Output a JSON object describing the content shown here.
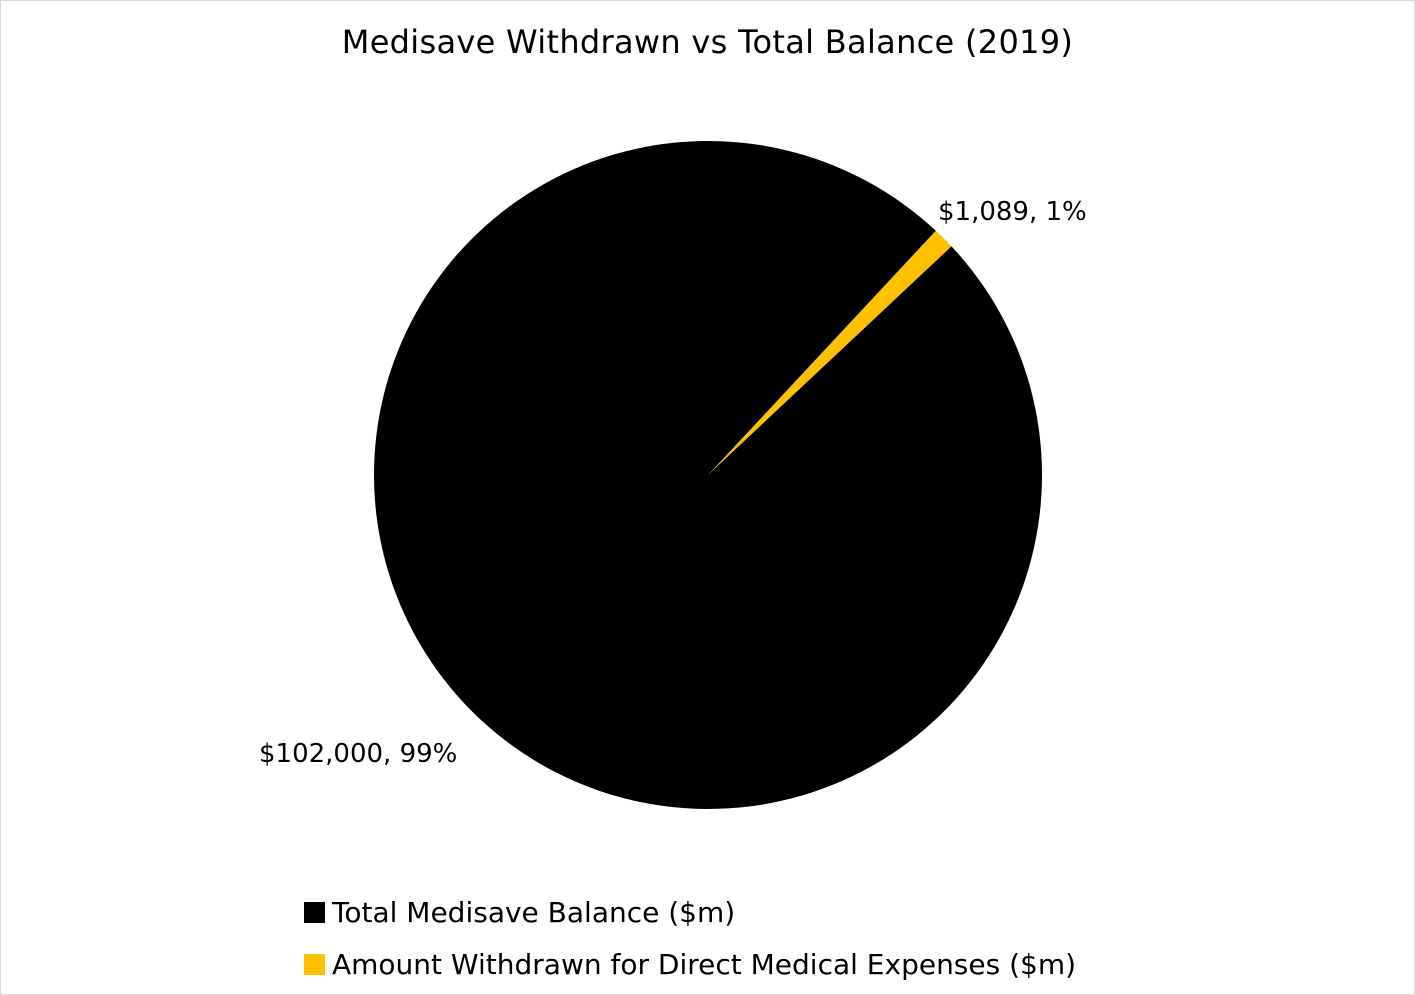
{
  "chart_data": {
    "type": "pie",
    "title": "Medisave Withdrawn vs Total Balance (2019)",
    "slices": [
      {
        "name": "Amount Withdrawn for Direct Medical Expenses ($m)",
        "value": 1089,
        "percent_label": "1%",
        "data_label": "$1,089, 1%",
        "color": "#FFC000"
      },
      {
        "name": "Total Medisave Balance ($m)",
        "value": 102000,
        "percent_label": "99%",
        "data_label": "$102,000, 99%",
        "color": "#000000"
      }
    ],
    "legend_position": "bottom",
    "legend": [
      {
        "label": "Total Medisave Balance ($m)",
        "color": "#000000"
      },
      {
        "label": "Amount Withdrawn for Direct Medical Expenses ($m)",
        "color": "#FFC000"
      }
    ]
  }
}
